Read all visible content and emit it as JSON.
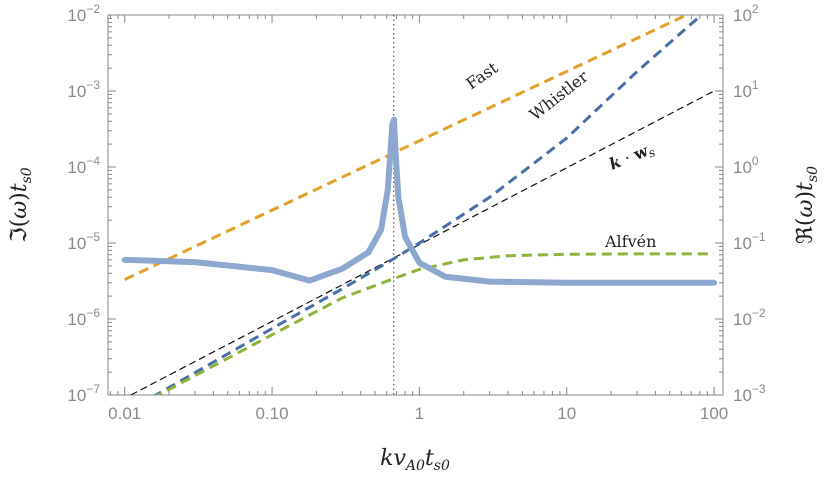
{
  "chart_data": {
    "type": "line",
    "title": "",
    "xlabel": "kv_{A0}t_{s0}",
    "ylabel_left": "ℑ(ω)t_{s0}",
    "ylabel_right": "ℜ(ω)t_{s0}",
    "xscale": "log",
    "yscale_left": "log",
    "yscale_right": "log",
    "xlim": [
      0.0077,
      115
    ],
    "ylim_left": [
      1e-07,
      0.01
    ],
    "ylim_right": [
      0.001,
      100.0
    ],
    "x_ticks": [
      {
        "value": 0.01,
        "label": "0.01"
      },
      {
        "value": 0.1,
        "label": "0.10"
      },
      {
        "value": 1,
        "label": "1"
      },
      {
        "value": 10,
        "label": "10"
      },
      {
        "value": 100,
        "label": "100"
      }
    ],
    "y_ticks_left": [
      {
        "value": 1e-07,
        "base": "10",
        "exp": "−7"
      },
      {
        "value": 1e-06,
        "base": "10",
        "exp": "−6"
      },
      {
        "value": 1e-05,
        "base": "10",
        "exp": "−5"
      },
      {
        "value": 0.0001,
        "base": "10",
        "exp": "−4"
      },
      {
        "value": 0.001,
        "base": "10",
        "exp": "−3"
      },
      {
        "value": 0.01,
        "base": "10",
        "exp": "−2"
      }
    ],
    "y_ticks_right": [
      {
        "value": 0.001,
        "base": "10",
        "exp": "−3"
      },
      {
        "value": 0.01,
        "base": "10",
        "exp": "−2"
      },
      {
        "value": 0.1,
        "base": "10",
        "exp": "−1"
      },
      {
        "value": 1.0,
        "base": "10",
        "exp": "0"
      },
      {
        "value": 10.0,
        "base": "10",
        "exp": "1"
      },
      {
        "value": 100.0,
        "base": "10",
        "exp": "2"
      }
    ],
    "vline": {
      "x": 0.67
    },
    "series": [
      {
        "name": "",
        "axis": "left",
        "style": "solid-thick",
        "color": "#8ea7cf",
        "x": [
          0.01,
          0.03,
          0.1,
          0.18,
          0.3,
          0.45,
          0.55,
          0.61,
          0.635,
          0.655,
          0.672,
          0.69,
          0.72,
          0.8,
          1.0,
          1.5,
          3,
          10,
          30,
          100
        ],
        "y": [
          6e-06,
          5.6e-06,
          4.4e-06,
          3.2e-06,
          4.6e-06,
          7.5e-06,
          1.5e-05,
          5e-05,
          0.00015,
          0.00036,
          0.00042,
          0.00015,
          4e-05,
          1.2e-05,
          5.5e-06,
          3.6e-06,
          3.1e-06,
          3e-06,
          3e-06,
          3e-06
        ]
      },
      {
        "name": "Fast",
        "axis": "right",
        "style": "dashed",
        "color": "#e3a12a",
        "x": [
          0.01,
          65
        ],
        "y": [
          0.033,
          100
        ]
      },
      {
        "name": "Whistler",
        "axis": "right",
        "style": "dashed",
        "color": "#4a6fa8",
        "x": [
          0.01,
          0.1,
          0.3,
          0.67,
          1,
          3,
          10,
          30,
          82
        ],
        "y": [
          0.00058,
          0.0075,
          0.025,
          0.062,
          0.1,
          0.4,
          2.4,
          18,
          100
        ]
      },
      {
        "name": "k · w_s",
        "axis": "right",
        "style": "dashed-thin",
        "color": "#111111",
        "x": [
          0.011,
          100
        ],
        "y": [
          0.001,
          10
        ]
      },
      {
        "name": "Alfvén",
        "axis": "right",
        "style": "dashed",
        "color": "#8fb43a",
        "x": [
          0.01,
          0.1,
          0.3,
          0.67,
          1,
          2,
          4,
          10,
          30,
          100
        ],
        "y": [
          0.00058,
          0.0062,
          0.019,
          0.034,
          0.045,
          0.06,
          0.068,
          0.071,
          0.072,
          0.072
        ]
      }
    ],
    "labels": {
      "fast": "Fast",
      "whistler": "Whistler",
      "kws_k": "k",
      "kws_dot": " · ",
      "kws_w": "w",
      "kws_sub": "s",
      "alfven": "Alfvén"
    }
  }
}
